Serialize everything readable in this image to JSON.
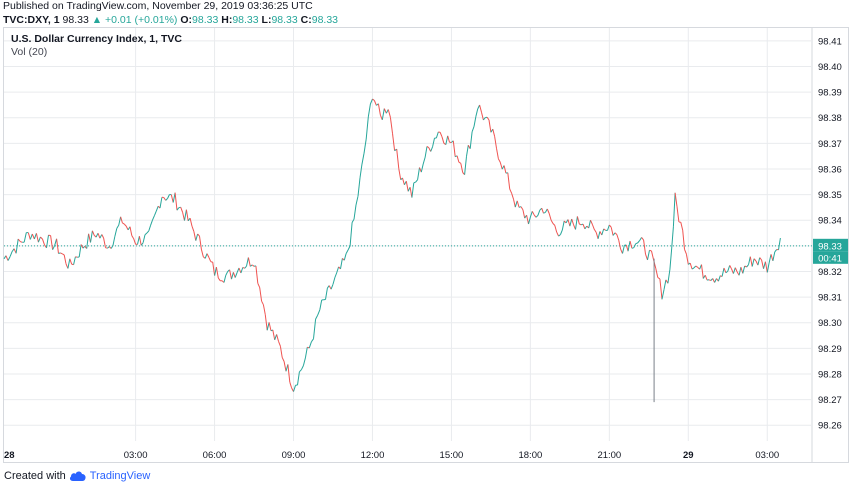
{
  "header": {
    "published": "Published on TradingView.com, November 29, 2019 03:36:25 UTC",
    "symbol": "TVC:DXY, 1",
    "last": "98.33",
    "change": "▲ +0.01 (+0.01%)",
    "o_label": "O:",
    "o_value": "98.33",
    "h_label": "H:",
    "h_value": "98.33",
    "l_label": "L:",
    "l_value": "98.33",
    "c_label": "C:",
    "c_value": "98.33"
  },
  "chart_title": "U.S. Dollar Currency Index, 1, TVC",
  "volume_label": "Vol (20)",
  "price_tag": "98.33",
  "countdown": "00:41",
  "footer": {
    "created": "Created with",
    "brand": "TradingView"
  },
  "colors": {
    "up": "#26a69a",
    "down": "#ef5350",
    "grid": "#e9ebee",
    "price_line": "#26a69a"
  },
  "chart_data": {
    "type": "line",
    "title": "U.S. Dollar Currency Index, 1, TVC",
    "ylim": [
      98.255,
      98.415
    ],
    "y_ticks": [
      "98.41",
      "98.40",
      "98.39",
      "98.38",
      "98.37",
      "98.36",
      "98.35",
      "98.34",
      "98.33",
      "98.32",
      "98.31",
      "98.30",
      "98.29",
      "98.28",
      "98.27",
      "98.26"
    ],
    "x_ticks": [
      "28",
      "03:00",
      "06:00",
      "09:00",
      "12:00",
      "15:00",
      "18:00",
      "21:00",
      "29",
      "03:00"
    ],
    "x_tick_times": [
      -2.0,
      3,
      6,
      9,
      12,
      15,
      18,
      21,
      24,
      27
    ],
    "xlim": [
      -2.0,
      28.7
    ],
    "grid": true,
    "series": [
      {
        "x": [
          -2.0,
          -1.0,
          0.0,
          0.5,
          1.0,
          1.5,
          2.0,
          2.5,
          3.0,
          3.5,
          4.0,
          4.5,
          5.0,
          5.5,
          6.0,
          6.5,
          7.0,
          7.5,
          8.0,
          8.5,
          9.0,
          9.3,
          9.6,
          10.0,
          10.5,
          11.0,
          11.3,
          11.6,
          12.0,
          12.3,
          12.6,
          13.0,
          13.5,
          14.0,
          14.5,
          15.0,
          15.5,
          16.0,
          16.5,
          17.0,
          17.5,
          18.0,
          18.5,
          19.0,
          19.5,
          20.0,
          20.5,
          21.0,
          21.5,
          22.0,
          22.3,
          22.6,
          23.0,
          23.3,
          23.5,
          24.0,
          24.5,
          25.0,
          25.5,
          26.0,
          26.5,
          27.0,
          27.5
        ],
        "y": [
          98.325,
          98.335,
          98.33,
          98.322,
          98.33,
          98.335,
          98.33,
          98.34,
          98.332,
          98.333,
          98.35,
          98.348,
          98.34,
          98.33,
          98.32,
          98.318,
          98.322,
          98.325,
          98.3,
          98.29,
          98.275,
          98.282,
          98.29,
          98.305,
          98.315,
          98.325,
          98.34,
          98.36,
          98.39,
          98.38,
          98.385,
          98.36,
          98.35,
          98.365,
          98.375,
          98.37,
          98.36,
          98.385,
          98.375,
          98.36,
          98.345,
          98.34,
          98.345,
          98.336,
          98.338,
          98.34,
          98.335,
          98.338,
          98.33,
          98.332,
          98.33,
          98.325,
          98.312,
          98.32,
          98.348,
          98.325,
          98.32,
          98.318,
          98.32,
          98.32,
          98.325,
          98.322,
          98.333
        ]
      }
    ]
  }
}
